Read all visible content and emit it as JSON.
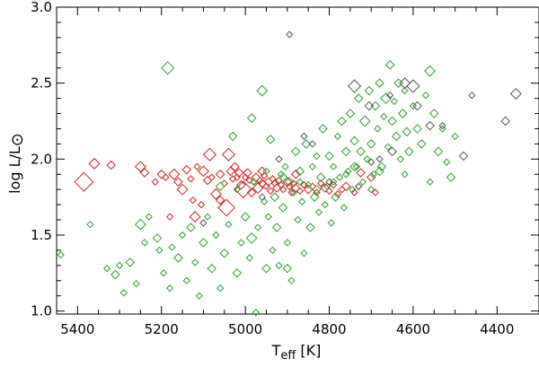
{
  "chart_data": {
    "type": "scatter",
    "title": "",
    "xlabel_main": "T",
    "xlabel_sub": "eff",
    "xlabel_unit": "[K]",
    "ylabel": "log L/L",
    "ylabel_symbol": "⊙",
    "xlim": [
      5450,
      4300
    ],
    "ylim": [
      0.98,
      3.0
    ],
    "x_ticks": [
      5400,
      5200,
      5000,
      4800,
      4600,
      4400
    ],
    "y_ticks": [
      1.0,
      1.5,
      2.0,
      2.5,
      3.0
    ],
    "y_tick_labels": [
      "1.0",
      "1.5",
      "2.0",
      "2.5",
      "3.0"
    ],
    "marker": "diamond",
    "grid": false,
    "series": [
      {
        "color": "#d42020",
        "points": [
          [
            5385,
            1.85,
            9
          ],
          [
            5360,
            1.97,
            5
          ],
          [
            5320,
            1.96,
            4
          ],
          [
            5250,
            1.95,
            5
          ],
          [
            5240,
            1.91,
            4
          ],
          [
            5215,
            1.85,
            3
          ],
          [
            5200,
            1.9,
            4
          ],
          [
            5190,
            1.88,
            3
          ],
          [
            5170,
            1.9,
            5
          ],
          [
            5160,
            1.85,
            4
          ],
          [
            5150,
            1.8,
            5
          ],
          [
            5140,
            1.93,
            4
          ],
          [
            5130,
            1.87,
            3
          ],
          [
            5125,
            1.73,
            3
          ],
          [
            5115,
            1.95,
            3
          ],
          [
            5100,
            1.92,
            5
          ],
          [
            5090,
            1.86,
            4
          ],
          [
            5085,
            2.03,
            6
          ],
          [
            5080,
            1.88,
            3
          ],
          [
            5070,
            1.77,
            5
          ],
          [
            5060,
            1.9,
            4
          ],
          [
            5050,
            1.84,
            3
          ],
          [
            5045,
            1.68,
            8
          ],
          [
            5040,
            2.03,
            6
          ],
          [
            5035,
            1.92,
            4
          ],
          [
            5030,
            1.87,
            3
          ],
          [
            5025,
            1.95,
            4
          ],
          [
            5020,
            1.88,
            3
          ],
          [
            5015,
            1.91,
            4
          ],
          [
            5010,
            1.83,
            4
          ],
          [
            5005,
            1.8,
            8
          ],
          [
            5000,
            1.88,
            3
          ],
          [
            4995,
            1.91,
            4
          ],
          [
            4990,
            1.86,
            3
          ],
          [
            4985,
            1.78,
            4
          ],
          [
            4980,
            1.85,
            3
          ],
          [
            4975,
            1.88,
            4
          ],
          [
            4970,
            1.81,
            5
          ],
          [
            4965,
            1.86,
            3
          ],
          [
            4960,
            1.84,
            4
          ],
          [
            4955,
            1.89,
            3
          ],
          [
            4950,
            1.82,
            3
          ],
          [
            4945,
            1.85,
            4
          ],
          [
            4940,
            1.79,
            3
          ],
          [
            4935,
            1.87,
            3
          ],
          [
            4930,
            1.84,
            3
          ],
          [
            4925,
            1.81,
            4
          ],
          [
            4920,
            1.86,
            3
          ],
          [
            4915,
            1.83,
            3
          ],
          [
            4910,
            1.8,
            3
          ],
          [
            4900,
            1.85,
            4
          ],
          [
            4895,
            1.82,
            3
          ],
          [
            4890,
            1.78,
            3
          ],
          [
            4885,
            1.84,
            3
          ],
          [
            4880,
            1.81,
            4
          ],
          [
            4870,
            1.79,
            3
          ],
          [
            4860,
            1.83,
            3
          ],
          [
            4850,
            1.8,
            4
          ],
          [
            4840,
            1.82,
            3
          ],
          [
            4830,
            1.78,
            3
          ],
          [
            4820,
            1.84,
            3
          ],
          [
            4810,
            1.81,
            4
          ],
          [
            4800,
            1.79,
            3
          ],
          [
            4790,
            1.83,
            3
          ],
          [
            4780,
            1.77,
            3
          ],
          [
            4770,
            1.8,
            3
          ],
          [
            4760,
            1.82,
            4
          ],
          [
            4740,
            1.78,
            3
          ],
          [
            4730,
            1.82,
            3
          ],
          [
            4725,
            1.91,
            4
          ],
          [
            4700,
            1.88,
            4
          ],
          [
            4690,
            1.78,
            3
          ],
          [
            5180,
            1.62,
            3
          ],
          [
            5120,
            1.62,
            5
          ],
          [
            5060,
            1.73,
            4
          ],
          [
            4960,
            1.92,
            4
          ],
          [
            4880,
            1.9,
            4
          ],
          [
            5105,
            1.7,
            3
          ]
        ]
      },
      {
        "color": "#2aa12a",
        "points": [
          [
            5440,
            1.37,
            3
          ],
          [
            5370,
            1.57,
            3
          ],
          [
            5330,
            1.28,
            3
          ],
          [
            5310,
            1.24,
            4
          ],
          [
            5300,
            1.3,
            3
          ],
          [
            5290,
            1.12,
            3
          ],
          [
            5275,
            1.32,
            4
          ],
          [
            5260,
            1.18,
            3
          ],
          [
            5250,
            1.57,
            5
          ],
          [
            5240,
            1.45,
            3
          ],
          [
            5230,
            1.62,
            3
          ],
          [
            5210,
            1.48,
            4
          ],
          [
            5205,
            1.4,
            3
          ],
          [
            5195,
            1.25,
            3
          ],
          [
            5185,
            2.6,
            6
          ],
          [
            5180,
            1.15,
            3
          ],
          [
            5175,
            1.42,
            3
          ],
          [
            5160,
            1.35,
            4
          ],
          [
            5150,
            1.5,
            3
          ],
          [
            5140,
            1.2,
            3
          ],
          [
            5130,
            1.55,
            4
          ],
          [
            5120,
            1.32,
            3
          ],
          [
            5110,
            1.1,
            3
          ],
          [
            5100,
            1.45,
            4
          ],
          [
            5090,
            1.62,
            3
          ],
          [
            5080,
            1.28,
            4
          ],
          [
            5070,
            1.5,
            3
          ],
          [
            5060,
            1.15,
            3
          ],
          [
            5050,
            1.38,
            4
          ],
          [
            5040,
            1.57,
            3
          ],
          [
            5030,
            2.15,
            4
          ],
          [
            5020,
            1.25,
            4
          ],
          [
            5010,
            1.45,
            3
          ],
          [
            5000,
            1.62,
            4
          ],
          [
            4990,
            1.35,
            3
          ],
          [
            4985,
            1.48,
            5
          ],
          [
            4975,
            0.99,
            3
          ],
          [
            4970,
            1.55,
            3
          ],
          [
            4960,
            2.45,
            5
          ],
          [
            4955,
            1.72,
            3
          ],
          [
            4950,
            1.28,
            4
          ],
          [
            4945,
            1.62,
            3
          ],
          [
            4940,
            2.13,
            4
          ],
          [
            4935,
            1.4,
            3
          ],
          [
            4930,
            1.75,
            4
          ],
          [
            4925,
            1.55,
            4
          ],
          [
            4920,
            1.3,
            3
          ],
          [
            4915,
            1.9,
            3
          ],
          [
            4910,
            1.68,
            4
          ],
          [
            4905,
            1.95,
            3
          ],
          [
            4900,
            1.45,
            3
          ],
          [
            4895,
            1.85,
            4
          ],
          [
            4890,
            1.2,
            3
          ],
          [
            4885,
            1.78,
            3
          ],
          [
            4880,
            2.05,
            4
          ],
          [
            4875,
            1.6,
            3
          ],
          [
            4870,
            1.92,
            4
          ],
          [
            4865,
            1.72,
            3
          ],
          [
            4860,
            1.38,
            3
          ],
          [
            4855,
            2.1,
            4
          ],
          [
            4850,
            1.83,
            3
          ],
          [
            4845,
            1.55,
            4
          ],
          [
            4840,
            1.95,
            3
          ],
          [
            4835,
            1.75,
            4
          ],
          [
            4830,
            2.02,
            3
          ],
          [
            4825,
            1.65,
            3
          ],
          [
            4820,
            1.88,
            4
          ],
          [
            4815,
            2.2,
            4
          ],
          [
            4810,
            1.7,
            3
          ],
          [
            4805,
            1.82,
            3
          ],
          [
            4800,
            2.02,
            4
          ],
          [
            4795,
            1.58,
            3
          ],
          [
            4790,
            1.95,
            3
          ],
          [
            4785,
            1.75,
            4
          ],
          [
            4780,
            2.15,
            3
          ],
          [
            4775,
            1.88,
            3
          ],
          [
            4770,
            2.25,
            4
          ],
          [
            4765,
            1.68,
            3
          ],
          [
            4760,
            2.05,
            4
          ],
          [
            4755,
            1.92,
            3
          ],
          [
            4750,
            2.3,
            4
          ],
          [
            4745,
            1.8,
            3
          ],
          [
            4740,
            2.12,
            4
          ],
          [
            4735,
            1.95,
            3
          ],
          [
            4730,
            2.4,
            4
          ],
          [
            4725,
            2.05,
            4
          ],
          [
            4720,
            1.85,
            3
          ],
          [
            4715,
            2.25,
            5
          ],
          [
            4710,
            2.0,
            3
          ],
          [
            4705,
            2.45,
            4
          ],
          [
            4700,
            2.1,
            4
          ],
          [
            4695,
            1.9,
            3
          ],
          [
            4690,
            2.35,
            4
          ],
          [
            4685,
            2.2,
            3
          ],
          [
            4680,
            2.5,
            4
          ],
          [
            4675,
            1.95,
            4
          ],
          [
            4670,
            2.28,
            3
          ],
          [
            4665,
            2.4,
            5
          ],
          [
            4660,
            2.08,
            3
          ],
          [
            4655,
            2.62,
            4
          ],
          [
            4650,
            2.25,
            4
          ],
          [
            4645,
            2.38,
            3
          ],
          [
            4640,
            2.15,
            4
          ],
          [
            4635,
            2.5,
            4
          ],
          [
            4630,
            2.0,
            3
          ],
          [
            4625,
            2.3,
            4
          ],
          [
            4620,
            2.45,
            3
          ],
          [
            4615,
            2.18,
            4
          ],
          [
            4610,
            2.05,
            4
          ],
          [
            4600,
            2.35,
            3
          ],
          [
            4590,
            2.2,
            4
          ],
          [
            4580,
            2.1,
            4
          ],
          [
            4570,
            2.42,
            3
          ],
          [
            4560,
            2.58,
            5
          ],
          [
            4550,
            2.3,
            4
          ],
          [
            4540,
            2.05,
            4
          ],
          [
            4530,
            2.2,
            3
          ],
          [
            4520,
            1.98,
            3
          ],
          [
            4510,
            1.88,
            4
          ],
          [
            4500,
            2.15,
            3
          ],
          [
            4560,
            1.85,
            3
          ],
          [
            4620,
            1.9,
            3
          ],
          [
            4680,
            1.92,
            4
          ],
          [
            4700,
            1.8,
            3
          ],
          [
            4740,
            1.95,
            4
          ],
          [
            4760,
            1.9,
            3
          ],
          [
            4790,
            1.85,
            3
          ],
          [
            4830,
            1.8,
            4
          ],
          [
            4870,
            1.85,
            3
          ],
          [
            4910,
            1.88,
            4
          ],
          [
            4950,
            1.92,
            3
          ],
          [
            4980,
            1.85,
            3
          ],
          [
            5020,
            1.8,
            3
          ],
          [
            5060,
            1.82,
            4
          ],
          [
            4985,
            2.27,
            4
          ],
          [
            4900,
            1.28,
            4
          ]
        ]
      },
      {
        "color": "#555555",
        "points": [
          [
            4895,
            2.82,
            3
          ],
          [
            4740,
            2.48,
            6
          ],
          [
            4705,
            2.35,
            4
          ],
          [
            4655,
            2.42,
            3
          ],
          [
            4620,
            2.5,
            5
          ],
          [
            4600,
            2.48,
            6
          ],
          [
            4590,
            2.35,
            4
          ],
          [
            4560,
            2.22,
            4
          ],
          [
            4530,
            2.22,
            3
          ],
          [
            4480,
            2.02,
            4
          ],
          [
            4460,
            2.42,
            3
          ],
          [
            4380,
            2.25,
            4
          ],
          [
            4355,
            2.43,
            5
          ],
          [
            4840,
            2.1,
            3
          ],
          [
            4800,
            1.85,
            3
          ],
          [
            4860,
            2.15,
            3
          ],
          [
            4920,
            2.0,
            3
          ],
          [
            5100,
            1.58,
            3
          ],
          [
            4960,
            1.75,
            3
          ],
          [
            4700,
            1.98,
            3
          ],
          [
            4680,
            2.0,
            3
          ],
          [
            4650,
            2.05,
            4
          ],
          [
            4730,
            1.82,
            3
          ]
        ]
      }
    ]
  }
}
